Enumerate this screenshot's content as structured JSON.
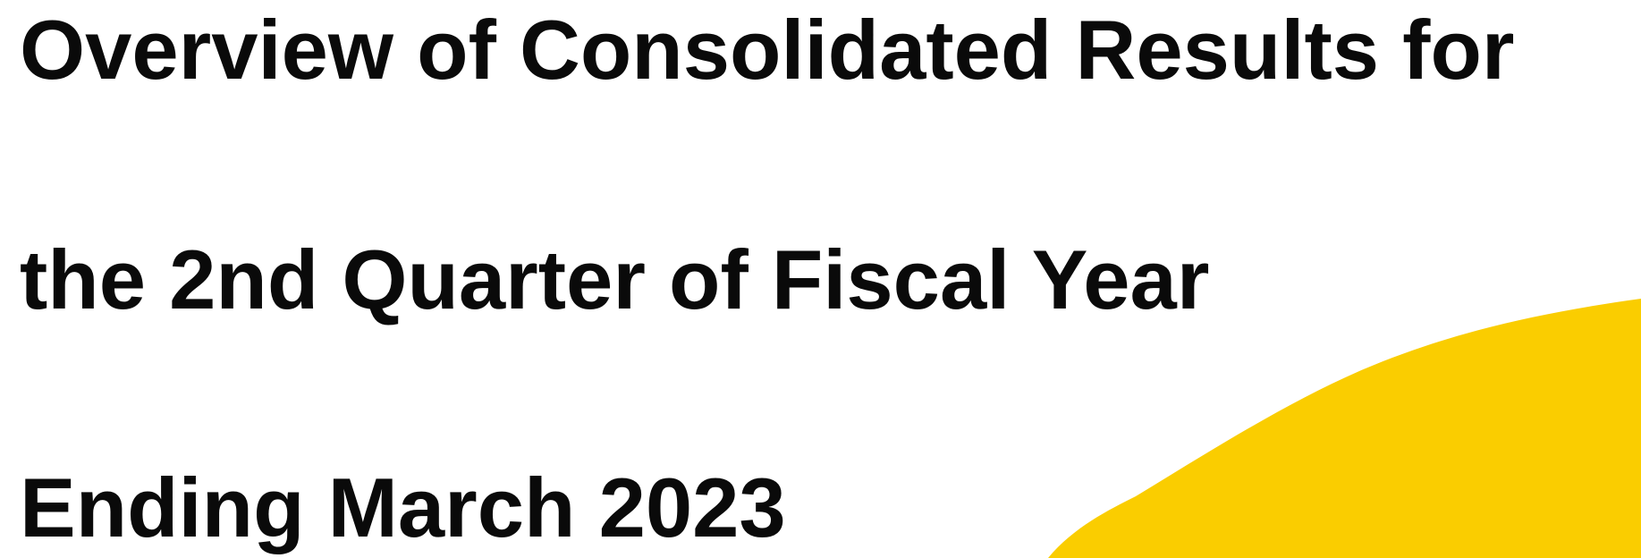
{
  "header": {
    "title_lines": [
      "Overview of Consolidated Results for",
      "the 2nd Quarter of Fiscal Year",
      "Ending March 2023"
    ]
  }
}
